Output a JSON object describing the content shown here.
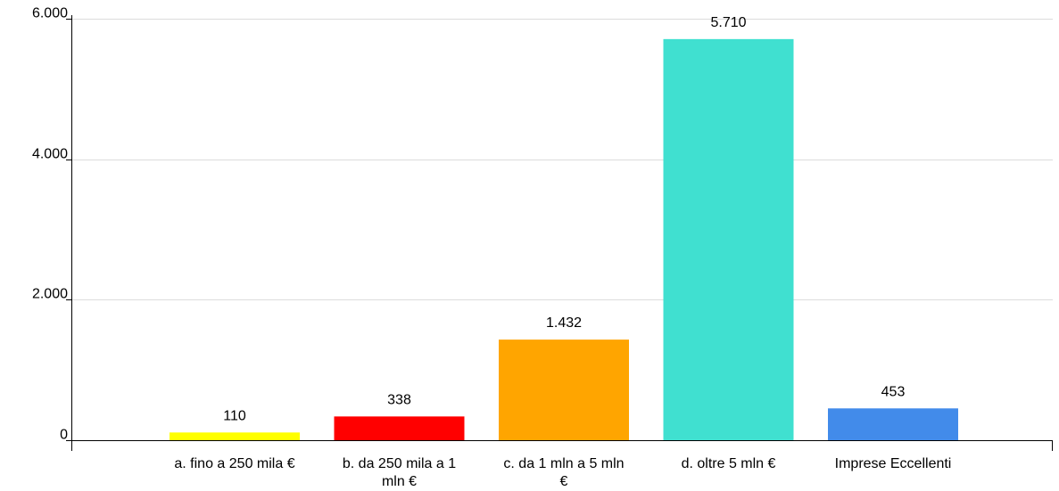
{
  "chart_data": {
    "type": "bar",
    "title": "",
    "xlabel": "",
    "ylabel": "",
    "ylim": [
      0,
      6000
    ],
    "yticks": [
      0,
      2000,
      4000,
      6000
    ],
    "ytick_labels": [
      "0",
      "2.000",
      "4.000",
      "6.000"
    ],
    "grid": true,
    "categories": [
      "a. fino a 250 mila €",
      "b. da 250 mila a 1 mln €",
      "c. da 1 mln a 5 mln €",
      "d. oltre 5 mln €",
      "Imprese Eccellenti"
    ],
    "category_lines": [
      [
        "a. fino a 250 mila €"
      ],
      [
        "b. da 250 mila a 1",
        "mln €"
      ],
      [
        "c. da 1 mln a 5 mln",
        "€"
      ],
      [
        "d. oltre 5 mln €"
      ],
      [
        "Imprese Eccellenti"
      ]
    ],
    "values": [
      110,
      338,
      1432,
      5710,
      453
    ],
    "value_labels": [
      "110",
      "338",
      "1.432",
      "5.710",
      "453"
    ],
    "colors": [
      "#FFFF00",
      "#FF0000",
      "#FFA500",
      "#40E0D0",
      "#428BEA"
    ]
  }
}
